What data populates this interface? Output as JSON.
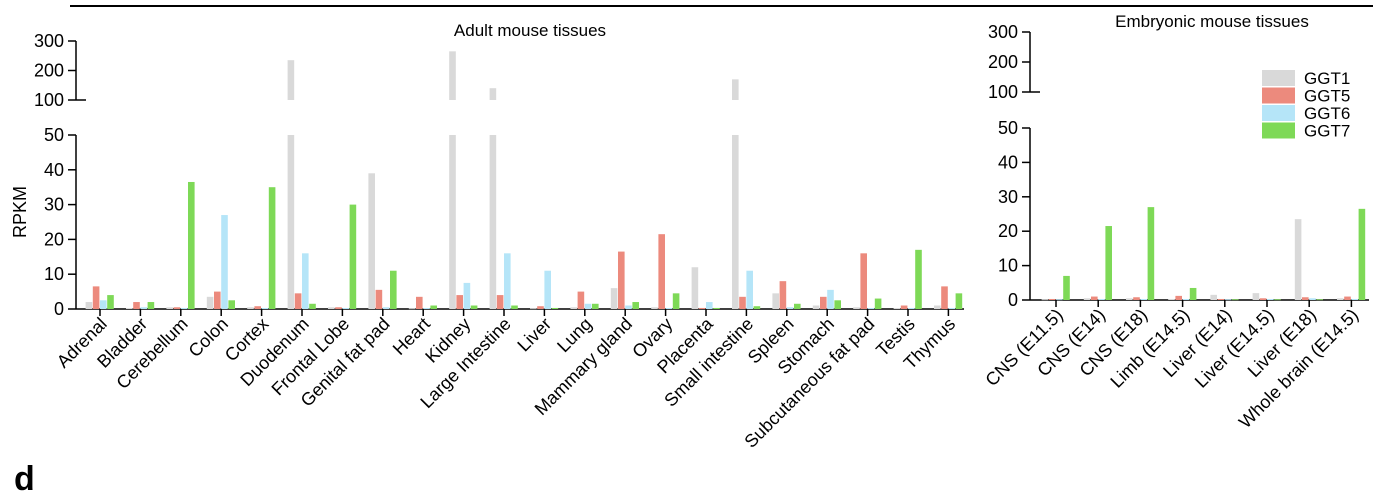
{
  "panel_label": "d",
  "chart_data": [
    {
      "type": "bar",
      "title": "Adult mouse tissues",
      "ylabel": "RPKM",
      "xlabel": "",
      "y_axis": {
        "broken": true,
        "lower_range": [
          0,
          50
        ],
        "lower_ticks": [
          "0",
          "10",
          "20",
          "30",
          "40",
          "50"
        ],
        "upper_range": [
          100,
          300
        ],
        "upper_ticks": [
          "100",
          "200",
          "300"
        ]
      },
      "categories": [
        "Adrenal",
        "Bladder",
        "Cerebellum",
        "Colon",
        "Cortex",
        "Duodenum",
        "Frontal Lobe",
        "Genital fat pad",
        "Heart",
        "Kidney",
        "Large Intestine",
        "Liver",
        "Lung",
        "Mammary gland",
        "Ovary",
        "Placenta",
        "Small intestine",
        "Spleen",
        "Stomach",
        "Subcutaneous fat pad",
        "Testis",
        "Thymus"
      ],
      "series": [
        {
          "name": "GGT1",
          "color": "#d9d9d9",
          "values": [
            2,
            0.3,
            0.5,
            3.5,
            0.5,
            235,
            0.5,
            39,
            0.2,
            265,
            140,
            0.2,
            0.5,
            6,
            0.5,
            12,
            170,
            4.5,
            1,
            0.5,
            0.3,
            1
          ]
        },
        {
          "name": "GGT5",
          "color": "#ec8a7d",
          "values": [
            6.5,
            2,
            0.5,
            5,
            0.8,
            4.5,
            0.5,
            5.5,
            3.5,
            4,
            4,
            0.8,
            5,
            16.5,
            21.5,
            0.3,
            3.5,
            8,
            3.5,
            16,
            1,
            6.5
          ]
        },
        {
          "name": "GGT6",
          "color": "#b5e5f8",
          "values": [
            2.5,
            0.5,
            0.3,
            27,
            0.3,
            16,
            0.3,
            0.5,
            0.3,
            7.5,
            16,
            11,
            1.5,
            1,
            0.3,
            2,
            11,
            0.5,
            5.5,
            0.3,
            0.3,
            0.3
          ]
        },
        {
          "name": "GGT7",
          "color": "#7ed957",
          "values": [
            4,
            2,
            36.5,
            2.5,
            35,
            1.5,
            30,
            11,
            1,
            1,
            1,
            0.3,
            1.5,
            2,
            4.5,
            0.3,
            0.8,
            1.5,
            2.5,
            3,
            17,
            4.5
          ]
        }
      ]
    },
    {
      "type": "bar",
      "title": "Embryonic mouse tissues",
      "ylabel": "",
      "xlabel": "",
      "y_axis": {
        "broken": true,
        "lower_range": [
          0,
          50
        ],
        "lower_ticks": [
          "0",
          "10",
          "20",
          "30",
          "40",
          "50"
        ],
        "upper_range": [
          100,
          300
        ],
        "upper_ticks": [
          "100",
          "200",
          "300"
        ]
      },
      "legend": {
        "placement": "top-right"
      },
      "categories": [
        "CNS (E11.5)",
        "CNS (E14)",
        "CNS (E18)",
        "Limb (E14.5)",
        "Liver (E14)",
        "Liver (E14.5)",
        "Liver (E18)",
        "Whole brain (E14.5)"
      ],
      "series": [
        {
          "name": "GGT1",
          "color": "#d9d9d9",
          "values": [
            0.2,
            0.5,
            0.5,
            0.3,
            1.5,
            2,
            23.5,
            0.5
          ]
        },
        {
          "name": "GGT5",
          "color": "#ec8a7d",
          "values": [
            0.3,
            1,
            0.8,
            1.2,
            0.3,
            0.5,
            0.8,
            1
          ]
        },
        {
          "name": "GGT6",
          "color": "#b5e5f8",
          "values": [
            0.2,
            0.3,
            0.3,
            0.3,
            0.2,
            0.3,
            0.5,
            0.3
          ]
        },
        {
          "name": "GGT7",
          "color": "#7ed957",
          "values": [
            7,
            21.5,
            27,
            3.5,
            0.2,
            0.2,
            0.2,
            26.5
          ]
        }
      ]
    }
  ]
}
